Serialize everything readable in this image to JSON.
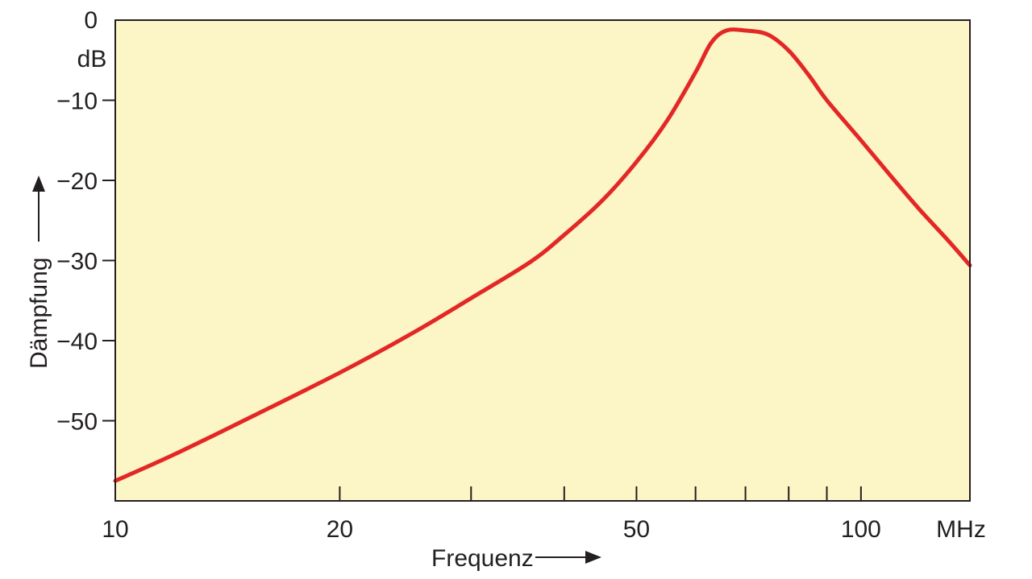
{
  "chart_data": {
    "type": "line",
    "x_scale": "log",
    "xlim": [
      10,
      140
    ],
    "ylim": [
      -60,
      0
    ],
    "xlabel": "Frequenz",
    "ylabel": "Dämpfung",
    "x_unit": "MHz",
    "y_unit": "dB",
    "grid": false,
    "x_ticks": [
      {
        "value": 10,
        "label": "10"
      },
      {
        "value": 20,
        "label": "20"
      },
      {
        "value": 30,
        "label": ""
      },
      {
        "value": 40,
        "label": ""
      },
      {
        "value": 50,
        "label": "50"
      },
      {
        "value": 60,
        "label": ""
      },
      {
        "value": 70,
        "label": ""
      },
      {
        "value": 80,
        "label": ""
      },
      {
        "value": 90,
        "label": ""
      },
      {
        "value": 100,
        "label": "100"
      }
    ],
    "y_ticks": [
      {
        "value": 0,
        "label": "0"
      },
      {
        "value": -10,
        "label": "−10"
      },
      {
        "value": -20,
        "label": "−20"
      },
      {
        "value": -30,
        "label": "−30"
      },
      {
        "value": -40,
        "label": "−40"
      },
      {
        "value": -50,
        "label": "−50"
      }
    ],
    "series": [
      {
        "color": "#e32726",
        "x": [
          10,
          12,
          15,
          20,
          25,
          30,
          36,
          40,
          45,
          50,
          55,
          60,
          63,
          66,
          70,
          75,
          80,
          85,
          90,
          100,
          110,
          120,
          130,
          140
        ],
        "y": [
          -57.5,
          -54.2,
          -49.8,
          -44.0,
          -39.1,
          -34.7,
          -30.2,
          -26.8,
          -22.5,
          -17.7,
          -12.5,
          -6.5,
          -2.8,
          -1.3,
          -1.3,
          -1.8,
          -3.8,
          -6.8,
          -10.0,
          -15.0,
          -19.6,
          -23.7,
          -27.2,
          -30.6
        ]
      }
    ],
    "colors": {
      "plot_background": "#fcf5c5",
      "axis": "#231f20",
      "curve": "#e32726"
    }
  }
}
